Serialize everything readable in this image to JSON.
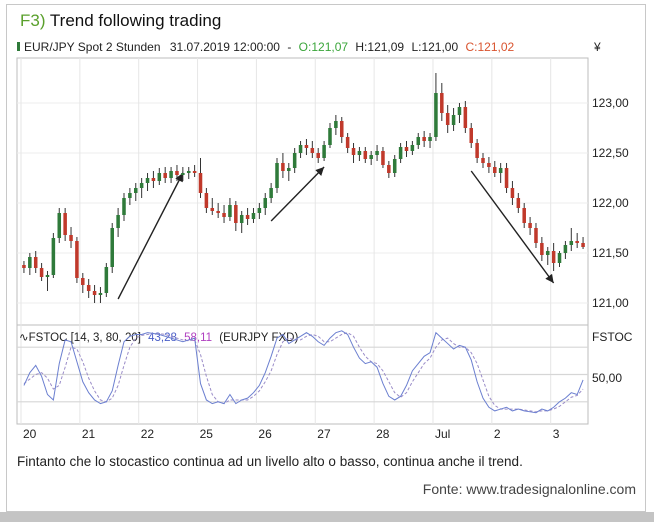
{
  "figure": {
    "number": "F3)",
    "title": "Trend following trading",
    "caption": "Fintanto che lo stocastico continua ad un livello alto o basso, continua anche il trend.",
    "source": "Fonte: www.tradesignalonline.com"
  },
  "colors": {
    "up": "#2f7a3a",
    "down": "#c0392b",
    "open_label": "#3aa53a",
    "close_label": "#d9532e",
    "fast_line": "#6b7fd0",
    "slow_line": "#9a8cc8",
    "stoch_value_1": "#4a5fc8",
    "stoch_value_2": "#b040c0"
  },
  "header": {
    "symbol": "EUR/JPY Spot 2 Stunden",
    "datetime": "31.07.2019 12:00:00",
    "open_label": "O:121,07",
    "high_label": "H:121,09",
    "low_label": "L:121,00",
    "close_label": "C:121,02",
    "currency_symbol": "¥"
  },
  "stoch_header": {
    "label": "FSTOC [14, 3, 80, 20]",
    "value_1": "43,28",
    "value_2": "58,11",
    "instrument": "(EURJPY FXD)",
    "axis_label": "FSTOC",
    "axis_tick": "50,00"
  },
  "chart_data": {
    "type": "candlestick",
    "symbol": "EUR/JPY Spot 2 Stunden",
    "ylim": [
      120.78,
      123.45
    ],
    "yticks": [
      121.0,
      121.5,
      122.0,
      122.5,
      123.0
    ],
    "ytick_labels": [
      "121,00",
      "121,50",
      "122,00",
      "122,50",
      "123,00"
    ],
    "xticks": [
      {
        "label": "20",
        "index": 0
      },
      {
        "label": "21",
        "index": 10
      },
      {
        "label": "22",
        "index": 20
      },
      {
        "label": "25",
        "index": 30
      },
      {
        "label": "26",
        "index": 40
      },
      {
        "label": "27",
        "index": 50
      },
      {
        "label": "28",
        "index": 60
      },
      {
        "label": "Jul",
        "index": 70
      },
      {
        "label": "2",
        "index": 80
      },
      {
        "label": "3",
        "index": 90
      }
    ],
    "candles": [
      [
        121.38,
        121.42,
        121.3,
        121.35
      ],
      [
        121.35,
        121.5,
        121.28,
        121.46
      ],
      [
        121.46,
        121.52,
        121.3,
        121.35
      ],
      [
        121.35,
        121.4,
        121.22,
        121.26
      ],
      [
        121.26,
        121.32,
        121.12,
        121.28
      ],
      [
        121.28,
        121.7,
        121.25,
        121.65
      ],
      [
        121.65,
        121.95,
        121.6,
        121.9
      ],
      [
        121.9,
        121.95,
        121.62,
        121.68
      ],
      [
        121.68,
        121.76,
        121.55,
        121.62
      ],
      [
        121.62,
        121.66,
        121.2,
        121.25
      ],
      [
        121.25,
        121.3,
        121.1,
        121.18
      ],
      [
        121.18,
        121.24,
        121.05,
        121.12
      ],
      [
        121.12,
        121.18,
        121.0,
        121.08
      ],
      [
        121.08,
        121.16,
        121.0,
        121.1
      ],
      [
        121.1,
        121.4,
        121.06,
        121.36
      ],
      [
        121.36,
        121.8,
        121.3,
        121.75
      ],
      [
        121.75,
        121.95,
        121.66,
        121.88
      ],
      [
        121.88,
        122.1,
        121.82,
        122.05
      ],
      [
        122.05,
        122.15,
        121.98,
        122.1
      ],
      [
        122.1,
        122.2,
        122.02,
        122.15
      ],
      [
        122.15,
        122.25,
        122.05,
        122.2
      ],
      [
        122.2,
        122.3,
        122.12,
        122.25
      ],
      [
        122.25,
        122.32,
        122.15,
        122.22
      ],
      [
        122.22,
        122.35,
        122.18,
        122.3
      ],
      [
        122.3,
        122.36,
        122.2,
        122.25
      ],
      [
        122.25,
        122.36,
        122.2,
        122.32
      ],
      [
        122.32,
        122.38,
        122.22,
        122.28
      ],
      [
        122.28,
        122.36,
        122.22,
        122.3
      ],
      [
        122.3,
        122.36,
        122.24,
        122.32
      ],
      [
        122.32,
        122.38,
        122.26,
        122.3
      ],
      [
        122.3,
        122.45,
        122.05,
        122.1
      ],
      [
        122.1,
        122.15,
        121.9,
        121.95
      ],
      [
        121.95,
        122.05,
        121.88,
        121.92
      ],
      [
        121.92,
        122.0,
        121.85,
        121.9
      ],
      [
        121.9,
        121.98,
        121.8,
        121.86
      ],
      [
        121.86,
        122.05,
        121.82,
        121.98
      ],
      [
        121.98,
        122.02,
        121.72,
        121.8
      ],
      [
        121.8,
        121.92,
        121.7,
        121.88
      ],
      [
        121.88,
        121.95,
        121.78,
        121.84
      ],
      [
        121.84,
        121.95,
        121.8,
        121.9
      ],
      [
        121.9,
        122.0,
        121.84,
        121.95
      ],
      [
        121.95,
        122.1,
        121.88,
        122.05
      ],
      [
        122.05,
        122.2,
        122.0,
        122.15
      ],
      [
        122.15,
        122.45,
        122.1,
        122.4
      ],
      [
        122.4,
        122.5,
        122.25,
        122.32
      ],
      [
        122.32,
        122.4,
        122.22,
        122.35
      ],
      [
        122.35,
        122.55,
        122.3,
        122.5
      ],
      [
        122.5,
        122.62,
        122.45,
        122.58
      ],
      [
        122.58,
        122.64,
        122.48,
        122.55
      ],
      [
        122.55,
        122.62,
        122.45,
        122.5
      ],
      [
        122.5,
        122.55,
        122.4,
        122.45
      ],
      [
        122.45,
        122.62,
        122.42,
        122.58
      ],
      [
        122.58,
        122.8,
        122.55,
        122.75
      ],
      [
        122.75,
        122.88,
        122.68,
        122.82
      ],
      [
        122.82,
        122.86,
        122.6,
        122.66
      ],
      [
        122.66,
        122.7,
        122.5,
        122.55
      ],
      [
        122.55,
        122.6,
        122.4,
        122.48
      ],
      [
        122.48,
        122.56,
        122.42,
        122.52
      ],
      [
        122.52,
        122.56,
        122.4,
        122.44
      ],
      [
        122.44,
        122.52,
        122.38,
        122.48
      ],
      [
        122.48,
        122.58,
        122.42,
        122.52
      ],
      [
        122.52,
        122.56,
        122.35,
        122.38
      ],
      [
        122.38,
        122.42,
        122.25,
        122.3
      ],
      [
        122.3,
        122.48,
        122.26,
        122.44
      ],
      [
        122.44,
        122.6,
        122.4,
        122.56
      ],
      [
        122.56,
        122.62,
        122.46,
        122.52
      ],
      [
        122.52,
        122.62,
        122.48,
        122.58
      ],
      [
        122.58,
        122.7,
        122.54,
        122.66
      ],
      [
        122.66,
        122.72,
        122.56,
        122.62
      ],
      [
        122.62,
        122.7,
        122.55,
        122.66
      ],
      [
        122.66,
        123.3,
        122.62,
        123.1
      ],
      [
        123.1,
        123.2,
        122.82,
        122.9
      ],
      [
        122.9,
        122.98,
        122.7,
        122.78
      ],
      [
        122.78,
        122.95,
        122.72,
        122.88
      ],
      [
        122.88,
        123.0,
        122.8,
        122.96
      ],
      [
        122.96,
        123.02,
        122.7,
        122.75
      ],
      [
        122.75,
        122.8,
        122.55,
        122.6
      ],
      [
        122.6,
        122.64,
        122.4,
        122.45
      ],
      [
        122.45,
        122.5,
        122.35,
        122.4
      ],
      [
        122.4,
        122.46,
        122.3,
        122.36
      ],
      [
        122.36,
        122.42,
        122.26,
        122.3
      ],
      [
        122.3,
        122.4,
        122.2,
        122.35
      ],
      [
        122.35,
        122.4,
        122.1,
        122.15
      ],
      [
        122.15,
        122.22,
        121.98,
        122.05
      ],
      [
        122.05,
        122.1,
        121.9,
        121.95
      ],
      [
        121.95,
        122.0,
        121.75,
        121.8
      ],
      [
        121.8,
        121.86,
        121.68,
        121.75
      ],
      [
        121.75,
        121.8,
        121.55,
        121.6
      ],
      [
        121.6,
        121.66,
        121.42,
        121.48
      ],
      [
        121.48,
        121.56,
        121.38,
        121.52
      ],
      [
        121.52,
        121.6,
        121.32,
        121.4
      ],
      [
        121.4,
        121.52,
        121.36,
        121.5
      ],
      [
        121.5,
        121.62,
        121.44,
        121.58
      ],
      [
        121.58,
        121.75,
        121.52,
        121.62
      ],
      [
        121.62,
        121.7,
        121.55,
        121.6
      ],
      [
        121.6,
        121.66,
        121.54,
        121.56
      ]
    ],
    "trend_arrows": [
      {
        "x1": 16,
        "y1": 121.04,
        "x2": 27,
        "y2": 122.3
      },
      {
        "x1": 42,
        "y1": 121.82,
        "x2": 51,
        "y2": 122.36
      },
      {
        "x1": 76,
        "y1": 122.32,
        "x2": 90,
        "y2": 121.2
      }
    ],
    "stochastic": {
      "name": "FSTOC [14, 3, 80, 20]",
      "ylim": [
        0,
        100
      ],
      "levels": [
        80,
        50,
        20
      ],
      "ytick_labels": [
        "50,00"
      ],
      "k": [
        38,
        52,
        60,
        48,
        28,
        22,
        62,
        88,
        86,
        64,
        42,
        30,
        22,
        18,
        20,
        32,
        60,
        86,
        92,
        94,
        94,
        96,
        95,
        94,
        92,
        90,
        88,
        86,
        88,
        90,
        40,
        22,
        18,
        20,
        18,
        28,
        18,
        22,
        24,
        30,
        38,
        52,
        70,
        90,
        94,
        84,
        88,
        92,
        96,
        92,
        86,
        82,
        90,
        96,
        98,
        94,
        80,
        68,
        62,
        64,
        58,
        40,
        26,
        22,
        26,
        38,
        54,
        62,
        70,
        74,
        96,
        90,
        84,
        78,
        82,
        80,
        66,
        42,
        24,
        14,
        10,
        12,
        14,
        10,
        12,
        10,
        9,
        8,
        12,
        10,
        14,
        20,
        24,
        30,
        28,
        44
      ],
      "d": [
        40,
        45,
        50,
        52,
        46,
        34,
        38,
        58,
        80,
        78,
        64,
        46,
        32,
        22,
        20,
        24,
        38,
        60,
        80,
        90,
        93,
        94,
        95,
        95,
        94,
        92,
        90,
        88,
        87,
        88,
        72,
        48,
        28,
        20,
        18,
        22,
        22,
        22,
        22,
        26,
        32,
        42,
        54,
        72,
        86,
        90,
        88,
        88,
        92,
        94,
        92,
        86,
        86,
        90,
        94,
        96,
        92,
        80,
        70,
        64,
        62,
        54,
        42,
        30,
        25,
        30,
        42,
        52,
        62,
        68,
        80,
        88,
        90,
        84,
        80,
        80,
        74,
        62,
        44,
        26,
        16,
        12,
        12,
        12,
        12,
        11,
        10,
        9,
        10,
        10,
        12,
        15,
        20,
        25,
        27,
        34
      ]
    }
  }
}
